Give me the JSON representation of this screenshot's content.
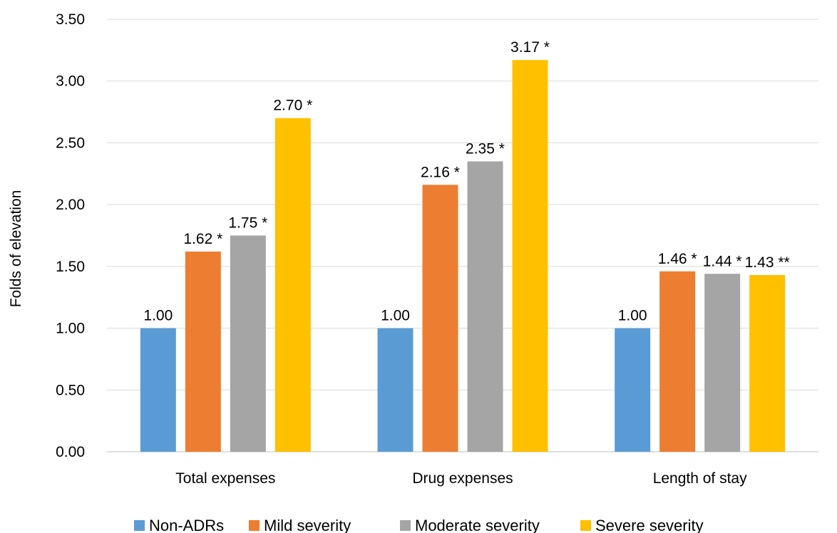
{
  "chart_data": {
    "type": "bar",
    "title": "",
    "xlabel": "",
    "ylabel": "Folds of elevation",
    "ylim": [
      0,
      3.5
    ],
    "yticks": [
      "0.00",
      "0.50",
      "1.00",
      "1.50",
      "2.00",
      "2.50",
      "3.00",
      "3.50"
    ],
    "grid": true,
    "legend_position": "bottom",
    "categories": [
      "Total expenses",
      "Drug expenses",
      "Length of stay"
    ],
    "series": [
      {
        "name": "Non-ADRs",
        "color": "#5b9bd5",
        "values": [
          1.0,
          1.0,
          1.0
        ],
        "labels": [
          "1.00",
          "1.00",
          "1.00"
        ]
      },
      {
        "name": "Mild severity",
        "color": "#ed7d31",
        "values": [
          1.62,
          2.16,
          1.46
        ],
        "labels": [
          "1.62 *",
          "2.16 *",
          "1.46 *"
        ]
      },
      {
        "name": "Moderate severity",
        "color": "#a5a5a5",
        "values": [
          1.75,
          2.35,
          1.44
        ],
        "labels": [
          "1.75 *",
          "2.35 *",
          "1.44 *"
        ]
      },
      {
        "name": "Severe severity",
        "color": "#ffc000",
        "values": [
          2.7,
          3.17,
          1.43
        ],
        "labels": [
          "2.70 *",
          "3.17 *",
          "1.43 **"
        ]
      }
    ]
  }
}
